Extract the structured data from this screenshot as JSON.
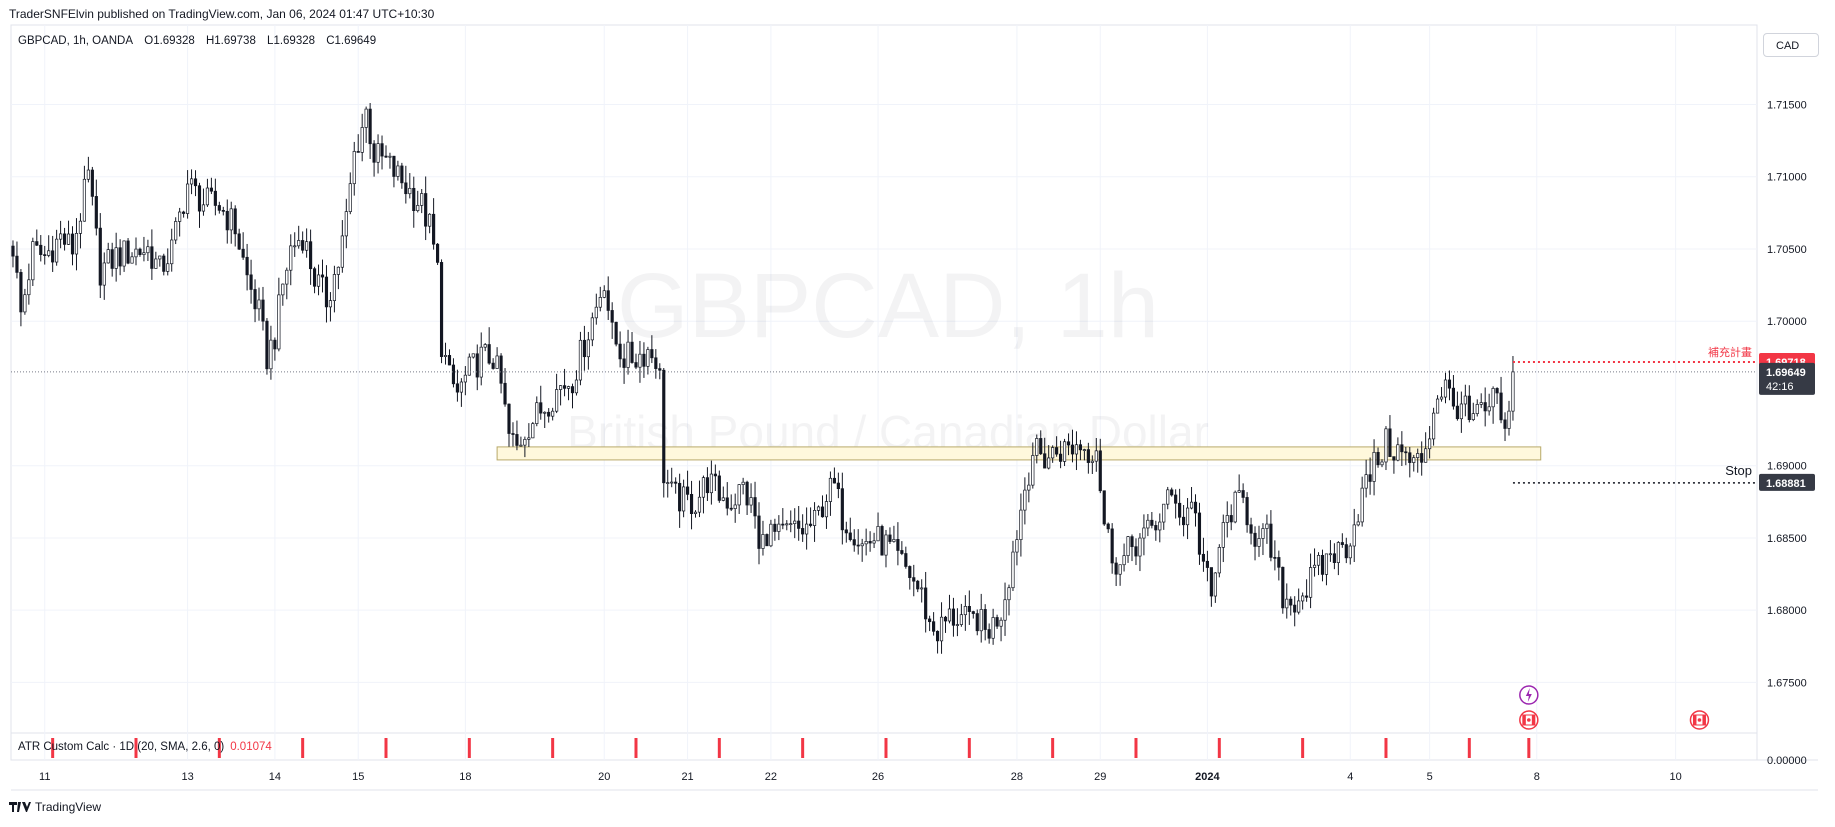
{
  "header": {
    "published_line": "TraderSNFElvin published on TradingView.com, Jan 06, 2024 01:47 UTC+10:30"
  },
  "symbol_line": {
    "symbol": "GBPCAD, 1h, OANDA",
    "open": "O1.69328",
    "high": "H1.69738",
    "low": "L1.69328",
    "close": "C1.69649"
  },
  "currency_button": "CAD",
  "watermark": {
    "title": "GBPCAD, 1h",
    "subtitle": "British Pound / Canadian Dollar"
  },
  "indicator": {
    "label": "ATR Custom Calc · 1D (20, SMA, 2.6, 0)",
    "value": "0.01074",
    "axis_label": "0.00000"
  },
  "footer": {
    "brand": "TradingView"
  },
  "colors": {
    "red": "#f23645",
    "dark_label": "#363a45",
    "zone_fill": "#fff8dc",
    "zone_stroke": "#b8a96a",
    "grid": "#f0f3fa",
    "event_purple": "#9c27b0"
  },
  "icons": [
    "lightning-event-icon",
    "canada-flag-icon",
    "canada-flag-icon-future",
    "tradingview-logo-icon"
  ],
  "chart_data": {
    "type": "candlestick",
    "ylim": [
      1.6715,
      1.7205
    ],
    "y_ticks": [
      {
        "value": 1.715,
        "label": "1.71500"
      },
      {
        "value": 1.71,
        "label": "1.71000"
      },
      {
        "value": 1.705,
        "label": "1.70500"
      },
      {
        "value": 1.7,
        "label": "1.70000"
      },
      {
        "value": 1.69,
        "label": "1.69000"
      },
      {
        "value": 1.685,
        "label": "1.68500"
      },
      {
        "value": 1.68,
        "label": "1.68000"
      },
      {
        "value": 1.675,
        "label": "1.67500"
      }
    ],
    "x_ticks": [
      {
        "label": "11",
        "idx": 8
      },
      {
        "label": "13",
        "idx": 44
      },
      {
        "label": "14",
        "idx": 66
      },
      {
        "label": "15",
        "idx": 87
      },
      {
        "label": "18",
        "idx": 114
      },
      {
        "label": "20",
        "idx": 149
      },
      {
        "label": "21",
        "idx": 170
      },
      {
        "label": "22",
        "idx": 191
      },
      {
        "label": "26",
        "idx": 218
      },
      {
        "label": "28",
        "idx": 253
      },
      {
        "label": "29",
        "idx": 274
      },
      {
        "label": "2024",
        "idx": 301,
        "bold": true
      },
      {
        "label": "4",
        "idx": 337
      },
      {
        "label": "5",
        "idx": 357
      },
      {
        "label": "8",
        "idx": 384
      },
      {
        "label": "10",
        "idx": 419
      }
    ],
    "x_bars": 440,
    "last_index": 378,
    "price_path": [
      [
        0,
        1.7052
      ],
      [
        2,
        1.7005
      ],
      [
        5,
        1.7048
      ],
      [
        8,
        1.7045
      ],
      [
        12,
        1.7058
      ],
      [
        15,
        1.705
      ],
      [
        19,
        1.71
      ],
      [
        22,
        1.7035
      ],
      [
        26,
        1.7045
      ],
      [
        30,
        1.7048
      ],
      [
        34,
        1.705
      ],
      [
        37,
        1.7035
      ],
      [
        40,
        1.705
      ],
      [
        44,
        1.7095
      ],
      [
        48,
        1.7082
      ],
      [
        52,
        1.708
      ],
      [
        56,
        1.7065
      ],
      [
        59,
        1.703
      ],
      [
        62,
        1.7005
      ],
      [
        64,
        1.6975
      ],
      [
        66,
        1.699
      ],
      [
        68,
        1.7025
      ],
      [
        70,
        1.705
      ],
      [
        73,
        1.706
      ],
      [
        76,
        1.703
      ],
      [
        79,
        1.7015
      ],
      [
        82,
        1.704
      ],
      [
        84,
        1.707
      ],
      [
        86,
        1.7115
      ],
      [
        89,
        1.7145
      ],
      [
        91,
        1.7115
      ],
      [
        94,
        1.711
      ],
      [
        97,
        1.71
      ],
      [
        100,
        1.709
      ],
      [
        103,
        1.708
      ],
      [
        105,
        1.7065
      ],
      [
        107,
        1.7035
      ],
      [
        108,
        1.6985
      ],
      [
        110,
        1.696
      ],
      [
        112,
        1.695
      ],
      [
        115,
        1.6965
      ],
      [
        118,
        1.6975
      ],
      [
        121,
        1.6975
      ],
      [
        123,
        1.6955
      ],
      [
        125,
        1.692
      ],
      [
        127,
        1.6912
      ],
      [
        129,
        1.6925
      ],
      [
        132,
        1.6935
      ],
      [
        135,
        1.6945
      ],
      [
        138,
        1.6955
      ],
      [
        141,
        1.696
      ],
      [
        144,
        1.6985
      ],
      [
        147,
        1.701
      ],
      [
        149,
        1.703
      ],
      [
        151,
        1.699
      ],
      [
        154,
        1.6975
      ],
      [
        157,
        1.6975
      ],
      [
        160,
        1.698
      ],
      [
        162,
        1.6975
      ],
      [
        163,
        1.696
      ],
      [
        164,
        1.6895
      ],
      [
        166,
        1.688
      ],
      [
        169,
        1.6875
      ],
      [
        172,
        1.6875
      ],
      [
        175,
        1.689
      ],
      [
        178,
        1.688
      ],
      [
        181,
        1.6875
      ],
      [
        184,
        1.6885
      ],
      [
        187,
        1.6865
      ],
      [
        188,
        1.684
      ],
      [
        190,
        1.6855
      ],
      [
        193,
        1.685
      ],
      [
        196,
        1.6855
      ],
      [
        199,
        1.6855
      ],
      [
        202,
        1.686
      ],
      [
        205,
        1.688
      ],
      [
        207,
        1.6885
      ],
      [
        209,
        1.6865
      ],
      [
        212,
        1.6855
      ],
      [
        214,
        1.6845
      ],
      [
        217,
        1.685
      ],
      [
        220,
        1.6845
      ],
      [
        223,
        1.6835
      ],
      [
        226,
        1.6825
      ],
      [
        229,
        1.681
      ],
      [
        231,
        1.679
      ],
      [
        233,
        1.6785
      ],
      [
        236,
        1.6795
      ],
      [
        239,
        1.6795
      ],
      [
        241,
        1.679
      ],
      [
        243,
        1.6795
      ],
      [
        245,
        1.6785
      ],
      [
        247,
        1.679
      ],
      [
        249,
        1.68
      ],
      [
        251,
        1.6825
      ],
      [
        253,
        1.6855
      ],
      [
        255,
        1.6885
      ],
      [
        257,
        1.691
      ],
      [
        260,
        1.6905
      ],
      [
        263,
        1.691
      ],
      [
        266,
        1.6912
      ],
      [
        269,
        1.6915
      ],
      [
        271,
        1.691
      ],
      [
        273,
        1.6915
      ],
      [
        275,
        1.686
      ],
      [
        277,
        1.684
      ],
      [
        279,
        1.683
      ],
      [
        282,
        1.6845
      ],
      [
        285,
        1.685
      ],
      [
        288,
        1.686
      ],
      [
        291,
        1.6875
      ],
      [
        293,
        1.688
      ],
      [
        295,
        1.686
      ],
      [
        297,
        1.688
      ],
      [
        299,
        1.6845
      ],
      [
        301,
        1.682
      ],
      [
        302,
        1.6805
      ],
      [
        304,
        1.6845
      ],
      [
        307,
        1.687
      ],
      [
        310,
        1.6875
      ],
      [
        312,
        1.686
      ],
      [
        314,
        1.6845
      ],
      [
        316,
        1.685
      ],
      [
        318,
        1.683
      ],
      [
        320,
        1.681
      ],
      [
        322,
        1.6805
      ],
      [
        324,
        1.681
      ],
      [
        326,
        1.6815
      ],
      [
        328,
        1.6825
      ],
      [
        330,
        1.683
      ],
      [
        332,
        1.684
      ],
      [
        334,
        1.684
      ],
      [
        336,
        1.6845
      ],
      [
        338,
        1.686
      ],
      [
        340,
        1.688
      ],
      [
        343,
        1.69
      ],
      [
        346,
        1.6915
      ],
      [
        349,
        1.691
      ],
      [
        351,
        1.6905
      ],
      [
        353,
        1.69
      ],
      [
        355,
        1.6905
      ],
      [
        357,
        1.6925
      ],
      [
        359,
        1.695
      ],
      [
        361,
        1.6955
      ],
      [
        363,
        1.694
      ],
      [
        365,
        1.6945
      ],
      [
        367,
        1.693
      ],
      [
        369,
        1.6935
      ],
      [
        371,
        1.6935
      ],
      [
        373,
        1.6945
      ],
      [
        375,
        1.6935
      ],
      [
        376,
        1.692
      ],
      [
        377,
        1.6933
      ],
      [
        378,
        1.6965
      ]
    ],
    "zone": {
      "from_idx": 122,
      "to_idx": 385,
      "low": 1.6904,
      "high": 1.6913
    },
    "current_price_line": 1.69649,
    "target": {
      "price": 1.69718,
      "label": "1.69718",
      "note": "補充計畫"
    },
    "stop": {
      "price": 1.68881,
      "label": "1.68881",
      "note": "Stop"
    },
    "last_price": {
      "label": "1.69649",
      "countdown": "42:16"
    },
    "atr_markers_idx": [
      10,
      31,
      52,
      73,
      94,
      115,
      136,
      157,
      178,
      199,
      220,
      241,
      262,
      283,
      304,
      325,
      346,
      367,
      382
    ],
    "events": [
      {
        "type": "lightning-event",
        "idx": 382
      },
      {
        "type": "canada-flag",
        "idx": 382
      },
      {
        "type": "canada-flag",
        "idx": 425
      }
    ]
  }
}
